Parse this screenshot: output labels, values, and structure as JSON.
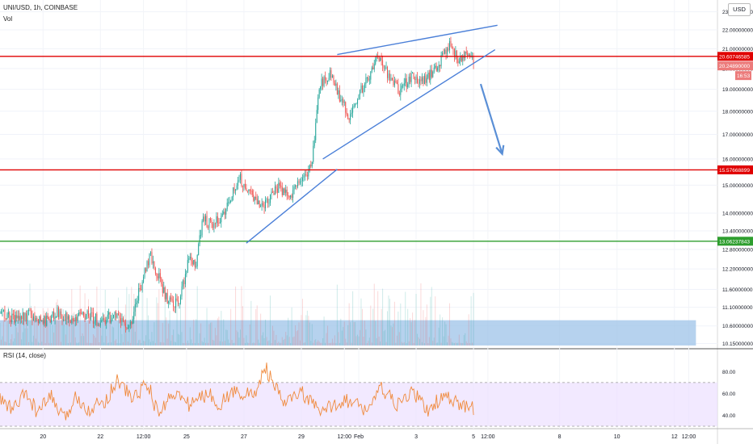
{
  "header": {
    "symbol": "UNI/USD, 1h, COINBASE",
    "volume_label": "Vol",
    "currency_badge": "USD"
  },
  "rsi_panel": {
    "label": "RSI (14, close)"
  },
  "colors": {
    "up": "#26a69a",
    "down": "#ef5350",
    "resistance": "#e00000",
    "support": "#2e9e2e",
    "trendline": "#4a7fd8",
    "arrow": "#5a8fd6",
    "rsi_line": "#f08a3c",
    "rsi_band": "#ede0ff",
    "volume_zone": "#9ec3e8"
  },
  "chart_data": [
    {
      "type": "candlestick",
      "title": "UNI/USD, 1h, COINBASE",
      "y_axis": {
        "scale": "log",
        "tick_labels": [
          "10.15000000",
          "10.60000000",
          "11.10000000",
          "11.60000000",
          "12.20000000",
          "12.80000000",
          "13.40000000",
          "14.00000000",
          "15.00000000",
          "16.00000000",
          "17.00000000",
          "18.00000000",
          "19.00000000",
          "20.00000000",
          "21.00000000",
          "22.00000000",
          "23.00000000"
        ],
        "tick_values": [
          10.15,
          10.6,
          11.1,
          11.6,
          12.2,
          12.8,
          13.4,
          14.0,
          15.0,
          16.0,
          17.0,
          18.0,
          19.0,
          20.0,
          21.0,
          22.0,
          23.0
        ]
      },
      "x_axis": {
        "tick_labels": [
          "20",
          "22",
          "12:00",
          "25",
          "27",
          "29",
          "12:00",
          "Feb",
          "3",
          "5",
          "12:00",
          "8",
          "10",
          "12",
          "12:00"
        ],
        "start": "Jan 19 12:00",
        "end": "Feb 13 12:00"
      },
      "price_path": [
        [
          "Jan 19 12:00",
          11.0
        ],
        [
          "Jan 20 00:00",
          10.8
        ],
        [
          "Jan 20 12:00",
          10.9
        ],
        [
          "Jan 21 00:00",
          10.7
        ],
        [
          "Jan 21 12:00",
          10.95
        ],
        [
          "Jan 22 00:00",
          10.75
        ],
        [
          "Jan 22 12:00",
          10.9
        ],
        [
          "Jan 23 00:00",
          10.7
        ],
        [
          "Jan 23 12:00",
          10.9
        ],
        [
          "Jan 24 00:00",
          10.5
        ],
        [
          "Jan 24 06:00",
          11.3
        ],
        [
          "Jan 24 18:00",
          12.6
        ],
        [
          "Jan 25 00:00",
          12.0
        ],
        [
          "Jan 25 08:00",
          11.3
        ],
        [
          "Jan 25 18:00",
          11.2
        ],
        [
          "Jan 26 02:00",
          12.6
        ],
        [
          "Jan 26 08:00",
          12.4
        ],
        [
          "Jan 26 14:00",
          13.8
        ],
        [
          "Jan 26 20:00",
          13.6
        ],
        [
          "Jan 27 08:00",
          14.0
        ],
        [
          "Jan 27 20:00",
          15.3
        ],
        [
          "Jan 28 06:00",
          14.6
        ],
        [
          "Jan 28 16:00",
          14.2
        ],
        [
          "Jan 29 04:00",
          14.9
        ],
        [
          "Jan 29 16:00",
          14.7
        ],
        [
          "Jan 30 00:00",
          15.2
        ],
        [
          "Jan 30 08:00",
          15.6
        ],
        [
          "Jan 30 16:00",
          19.3
        ],
        [
          "Jan 31 00:00",
          19.8
        ],
        [
          "Jan 31 08:00",
          18.6
        ],
        [
          "Jan 31 16:00",
          17.8
        ],
        [
          "Feb 1 00:00",
          18.8
        ],
        [
          "Feb 1 08:00",
          19.6
        ],
        [
          "Feb 1 16:00",
          20.6
        ],
        [
          "Feb 2 00:00",
          19.7
        ],
        [
          "Feb 2 10:00",
          19.0
        ],
        [
          "Feb 2 20:00",
          19.6
        ],
        [
          "Feb 3 06:00",
          19.4
        ],
        [
          "Feb 3 18:00",
          20.1
        ],
        [
          "Feb 4 04:00",
          21.2
        ],
        [
          "Feb 4 12:00",
          20.4
        ],
        [
          "Feb 4 20:00",
          20.9
        ],
        [
          "Feb 5 00:00",
          20.25
        ]
      ],
      "candle_seed": 1717,
      "last_price": 20.2489,
      "horizontal_levels": [
        {
          "price": 20.60746585,
          "label": "20.60746585",
          "color": "resistance"
        },
        {
          "price": 15.57668899,
          "label": "15.57668899",
          "color": "resistance"
        },
        {
          "price": 13.06237843,
          "label": "13.06237843",
          "color": "support"
        }
      ],
      "price_badges": [
        {
          "text": "20.24890000",
          "color": "#ec7b7b"
        },
        {
          "text": "16:53",
          "color": "#ec7b7b"
        }
      ],
      "trendlines": [
        {
          "from": [
            "Jan 31 06:00",
            20.7
          ],
          "to": [
            "Feb 5 20:00",
            22.25
          ]
        },
        {
          "from": [
            "Jan 30 18:00",
            16.0
          ],
          "to": [
            "Feb 5 18:00",
            20.95
          ]
        },
        {
          "from": [
            "Jan 28 02:00",
            13.0
          ],
          "to": [
            "Jan 31 06:00",
            15.6
          ]
        }
      ],
      "arrow": {
        "from": [
          "Feb 5 06:00",
          19.25
        ],
        "to": [
          "Feb 6 00:00",
          16.2
        ]
      },
      "volume": {
        "label": "Vol",
        "zone_top": 10.75,
        "zone_end": "Feb 12 18:00"
      }
    },
    {
      "type": "line",
      "title": "RSI (14, close)",
      "y_tick_labels": [
        "80.00",
        "60.00",
        "40.00"
      ],
      "y_tick_values": [
        80,
        60,
        40
      ],
      "band": [
        30,
        70
      ],
      "rsi_path": [
        [
          0,
          55
        ],
        [
          0.05,
          45
        ],
        [
          0.1,
          60
        ],
        [
          0.15,
          42
        ],
        [
          0.2,
          58
        ],
        [
          0.25,
          35
        ],
        [
          0.3,
          58
        ],
        [
          0.35,
          45
        ],
        [
          0.42,
          55
        ],
        [
          0.46,
          73
        ],
        [
          0.52,
          55
        ],
        [
          0.58,
          70
        ],
        [
          0.62,
          40
        ],
        [
          0.68,
          62
        ],
        [
          0.74,
          50
        ],
        [
          0.82,
          60
        ],
        [
          0.86,
          50
        ],
        [
          0.92,
          62
        ],
        [
          1.0,
          58
        ],
        [
          1.04,
          85
        ],
        [
          1.08,
          65
        ],
        [
          1.12,
          50
        ],
        [
          1.18,
          62
        ],
        [
          1.26,
          42
        ],
        [
          1.35,
          55
        ],
        [
          1.44,
          45
        ],
        [
          1.5,
          65
        ],
        [
          1.56,
          48
        ],
        [
          1.62,
          62
        ],
        [
          1.68,
          44
        ],
        [
          1.74,
          58
        ],
        [
          1.8,
          50
        ],
        [
          1.86,
          46
        ]
      ],
      "rsi_seed": 99
    }
  ]
}
